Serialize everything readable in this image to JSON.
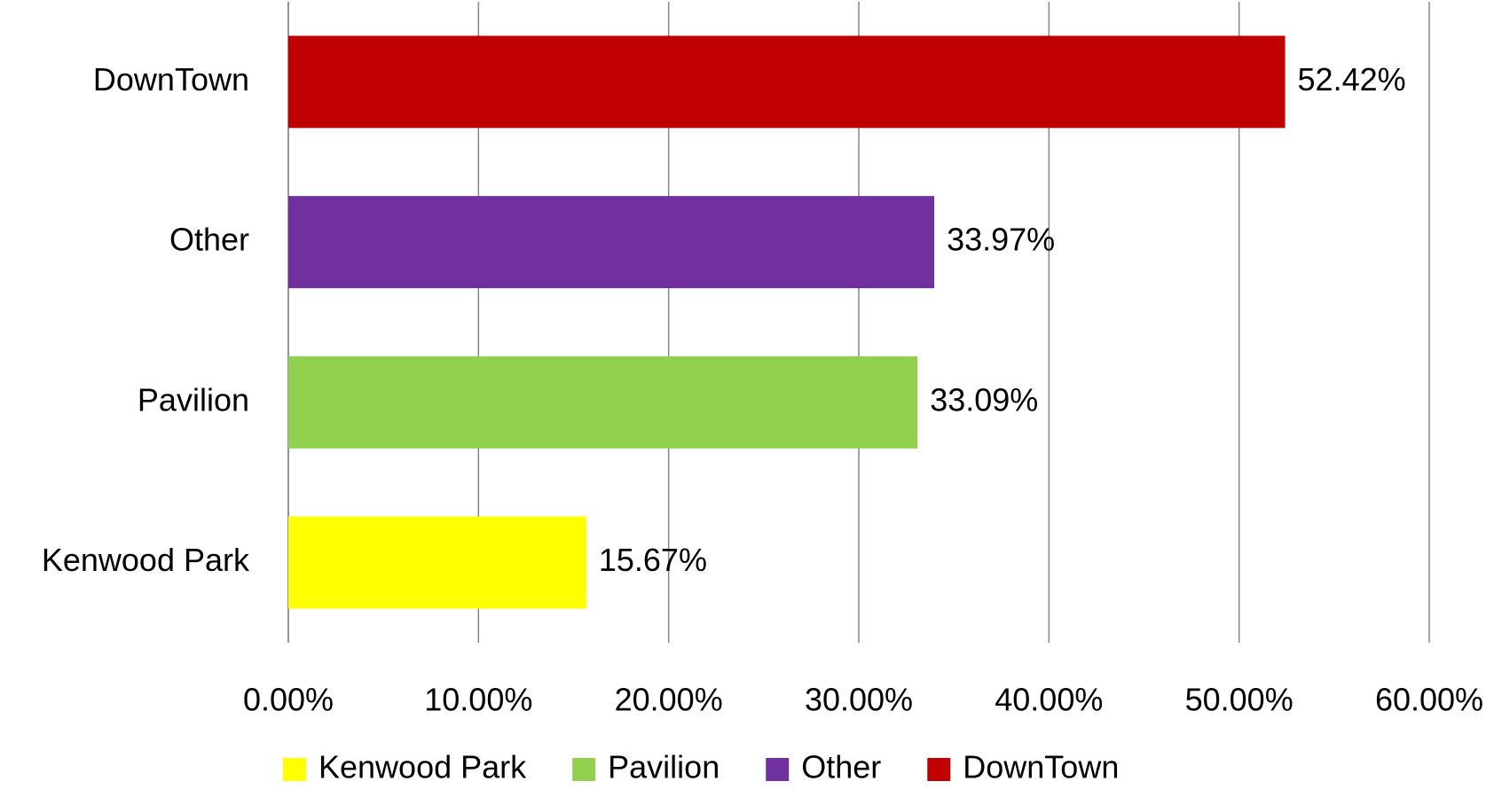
{
  "chart_data": {
    "type": "bar",
    "orientation": "horizontal",
    "categories": [
      "Kenwood Park",
      "Pavilion",
      "Other",
      "DownTown"
    ],
    "values": [
      15.67,
      33.09,
      33.97,
      52.42
    ],
    "value_labels": [
      "15.67%",
      "33.09%",
      "33.97%",
      "52.42%"
    ],
    "colors": [
      "#ffff00",
      "#92d050",
      "#7030a0",
      "#c00000"
    ],
    "xlim": [
      0,
      60
    ],
    "xticks": [
      {
        "value": 0,
        "label": "0.00%"
      },
      {
        "value": 10,
        "label": "10.00%"
      },
      {
        "value": 20,
        "label": "20.00%"
      },
      {
        "value": 30,
        "label": "30.00%"
      },
      {
        "value": 40,
        "label": "40.00%"
      },
      {
        "value": 50,
        "label": "50.00%"
      },
      {
        "value": 60,
        "label": "60.00%"
      }
    ],
    "grid": true,
    "legend": "bottom"
  }
}
